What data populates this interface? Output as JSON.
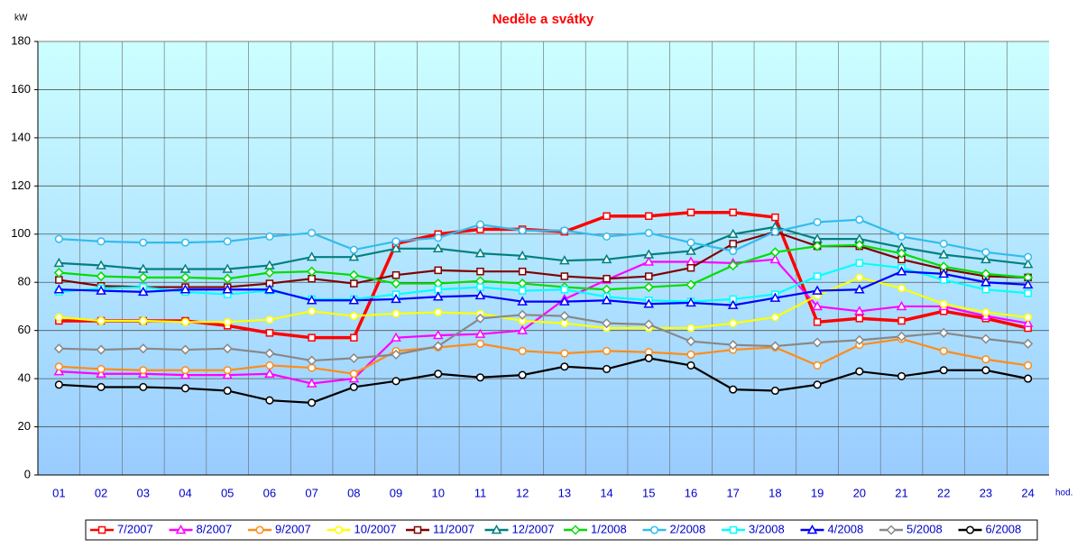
{
  "chart_data": {
    "type": "line",
    "title": "Neděle a svátky",
    "y_label": "kW",
    "x_label": "hod.",
    "categories": [
      "01",
      "02",
      "03",
      "04",
      "05",
      "06",
      "07",
      "08",
      "09",
      "10",
      "11",
      "12",
      "13",
      "14",
      "15",
      "16",
      "17",
      "18",
      "19",
      "20",
      "21",
      "22",
      "23",
      "24"
    ],
    "ylim": [
      0,
      180
    ],
    "yticks": [
      0,
      20,
      40,
      60,
      80,
      100,
      120,
      140,
      160,
      180
    ],
    "grid": true,
    "legend": "bottom",
    "series": [
      {
        "name": "7/2007",
        "color": "#ff0000",
        "marker": "square",
        "values": [
          64,
          64,
          64,
          64,
          62,
          59,
          57,
          57,
          96,
          100,
          102,
          102,
          101,
          107.5,
          107.5,
          109,
          109,
          107,
          63.5,
          65,
          64,
          68,
          65,
          61
        ]
      },
      {
        "name": "8/2007",
        "color": "#ff00ff",
        "marker": "triangle",
        "values": [
          43,
          42,
          42,
          41.5,
          41.5,
          42,
          38,
          40,
          57,
          58,
          58.5,
          60,
          73,
          81,
          88.5,
          88.5,
          88,
          89.5,
          70,
          68,
          70,
          70,
          66,
          63
        ]
      },
      {
        "name": "9/2007",
        "color": "#ff8c1a",
        "marker": "circle",
        "values": [
          45,
          44,
          43.5,
          43.5,
          43.5,
          45.5,
          44.5,
          42,
          51.5,
          53,
          54.5,
          51.5,
          50.5,
          51.5,
          51,
          50,
          52,
          53,
          45.5,
          54,
          56.5,
          51.5,
          48,
          45.5
        ]
      },
      {
        "name": "10/2007",
        "color": "#ffff00",
        "marker": "circle",
        "values": [
          65.5,
          64,
          64,
          63.5,
          63.5,
          64.5,
          68,
          66,
          67,
          67.5,
          67,
          64,
          63,
          61,
          61,
          61,
          63,
          65.5,
          74.5,
          82,
          77.5,
          71,
          67.5,
          65.5
        ]
      },
      {
        "name": "11/2007",
        "color": "#800000",
        "marker": "square",
        "values": [
          81,
          78.5,
          78,
          78,
          78,
          79.5,
          81.5,
          79.5,
          83,
          85,
          84.5,
          84.5,
          82.5,
          81.5,
          82.5,
          86,
          96,
          101,
          95,
          95,
          89.5,
          85.5,
          82.5,
          82
        ]
      },
      {
        "name": "12/2007",
        "color": "#008080",
        "marker": "triangle",
        "values": [
          88,
          87,
          85.5,
          85.5,
          85.5,
          87,
          90.5,
          90.5,
          94,
          94,
          92,
          91,
          89,
          89.5,
          91.5,
          93,
          100,
          103,
          98,
          98,
          94.5,
          91.5,
          89.5,
          87.5
        ]
      },
      {
        "name": "1/2008",
        "color": "#00dd00",
        "marker": "diamond",
        "values": [
          84,
          82.5,
          82,
          82,
          81.5,
          84,
          84.5,
          83,
          79.5,
          79.5,
          80.5,
          79.5,
          78,
          77,
          78,
          79,
          87,
          92.5,
          95,
          95.5,
          92,
          86.5,
          83.5,
          82
        ]
      },
      {
        "name": "2/2008",
        "color": "#33bbee",
        "marker": "circle",
        "values": [
          98,
          97,
          96.5,
          96.5,
          97,
          99,
          100.5,
          93.5,
          97,
          98.5,
          104,
          101.5,
          101.5,
          99,
          100.5,
          96.5,
          93,
          101,
          105,
          106,
          99,
          96,
          92.5,
          90.5
        ]
      },
      {
        "name": "3/2008",
        "color": "#00ffff",
        "marker": "square",
        "values": [
          76,
          77.5,
          78,
          76,
          75,
          76.5,
          73,
          73,
          75,
          77,
          78,
          76.5,
          77,
          74,
          72.5,
          72,
          73,
          75,
          82.5,
          88,
          86,
          81,
          77,
          75.5
        ]
      },
      {
        "name": "4/2008",
        "color": "#0000ff",
        "marker": "triangle",
        "values": [
          77,
          76.5,
          76,
          77,
          77,
          77,
          72.5,
          72.5,
          73,
          74,
          74.5,
          72,
          72,
          72.5,
          71,
          71.5,
          70.5,
          73.5,
          76.5,
          77,
          84.5,
          83.5,
          80,
          79
        ]
      },
      {
        "name": "5/2008",
        "color": "#888888",
        "marker": "diamond",
        "values": [
          52.5,
          52,
          52.5,
          52,
          52.5,
          50.5,
          47.5,
          48.5,
          50,
          53.5,
          65,
          66.5,
          66,
          63,
          62.5,
          55.5,
          54,
          53.5,
          55,
          56,
          57.5,
          59,
          56.5,
          54.5
        ]
      },
      {
        "name": "6/2008",
        "color": "#000000",
        "marker": "circle",
        "values": [
          37.5,
          36.5,
          36.5,
          36,
          35,
          31,
          30,
          36.5,
          39,
          42,
          40.5,
          41.5,
          45,
          44,
          48.5,
          45.5,
          35.5,
          35,
          37.5,
          43,
          41,
          43.5,
          43.5,
          40
        ]
      }
    ]
  }
}
